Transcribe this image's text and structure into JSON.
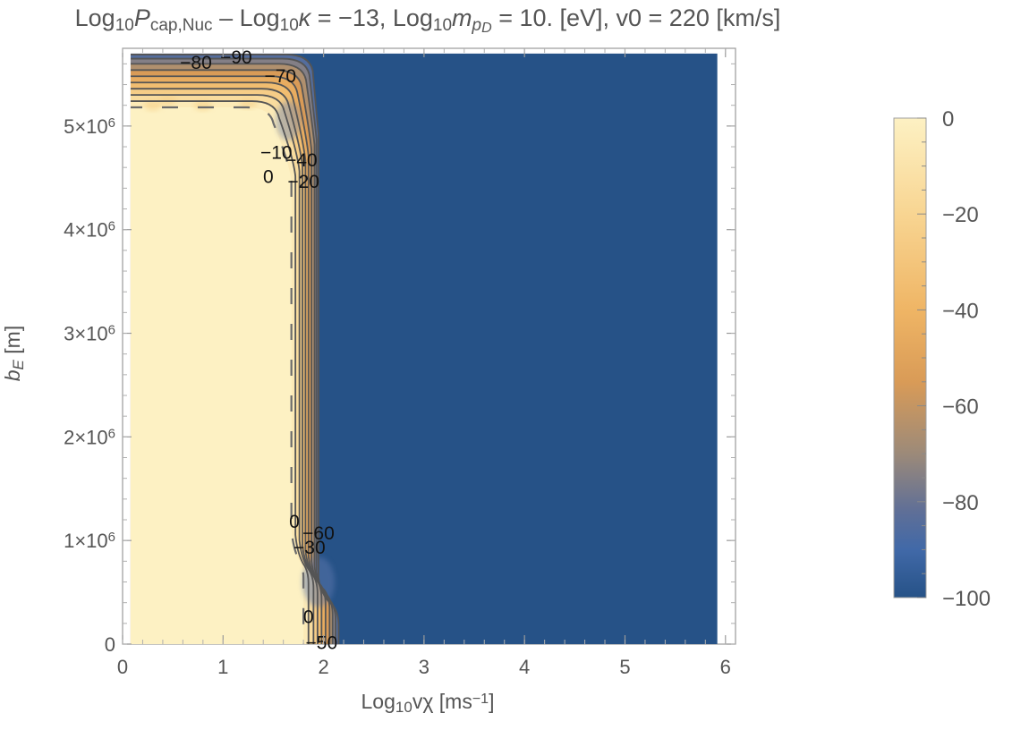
{
  "chart_data": {
    "type": "heatmap",
    "title": {
      "parts": [
        {
          "t": "Log"
        },
        {
          "t": "10",
          "sub": true
        },
        {
          "t": "P",
          "italic": true
        },
        {
          "t": "cap,Nuc",
          "sub": true
        },
        {
          "t": " – Log"
        },
        {
          "t": "10",
          "sub": true
        },
        {
          "t": "κ",
          "italic": true
        },
        {
          "t": " = −13, Log"
        },
        {
          "t": "10",
          "sub": true
        },
        {
          "t": "m",
          "italic": true
        },
        {
          "t": "p",
          "sub": true,
          "italic": true
        },
        {
          "t": "D",
          "subsub": true,
          "italic": true
        },
        {
          "t": " = 10. [eV], v0 = 220 [km/s]"
        }
      ]
    },
    "xlabel": {
      "parts": [
        {
          "t": "Log"
        },
        {
          "t": "10",
          "sub": true
        },
        {
          "t": "vχ [ms"
        },
        {
          "t": "−1",
          "sup": true
        },
        {
          "t": "]"
        }
      ]
    },
    "ylabel": {
      "parts": [
        {
          "t": "b",
          "italic": true
        },
        {
          "t": "E",
          "sub": true,
          "italic": true
        },
        {
          "t": " [m]"
        }
      ]
    },
    "xlim": [
      0,
      6.1
    ],
    "ylim": [
      0,
      5750000.0
    ],
    "x_ticks": [
      {
        "value": 0,
        "label": "0"
      },
      {
        "value": 1,
        "label": "1"
      },
      {
        "value": 2,
        "label": "2"
      },
      {
        "value": 3,
        "label": "3"
      },
      {
        "value": 4,
        "label": "4"
      },
      {
        "value": 5,
        "label": "5"
      },
      {
        "value": 6,
        "label": "6"
      }
    ],
    "y_ticks": [
      {
        "value": 0,
        "label": "0",
        "mantissa": "",
        "exponent": ""
      },
      {
        "value": 1000000,
        "label": "1×10^6",
        "mantissa": "1×10",
        "exponent": "6"
      },
      {
        "value": 2000000,
        "label": "2×10^6",
        "mantissa": "2×10",
        "exponent": "6"
      },
      {
        "value": 3000000,
        "label": "3×10^6",
        "mantissa": "3×10",
        "exponent": "6"
      },
      {
        "value": 4000000,
        "label": "4×10^6",
        "mantissa": "4×10",
        "exponent": "6"
      },
      {
        "value": 5000000,
        "label": "5×10^6",
        "mantissa": "5×10",
        "exponent": "6"
      }
    ],
    "data_extent": {
      "x": [
        0.08,
        5.92
      ],
      "y": [
        0,
        5700000.0
      ]
    },
    "regions": {
      "high_value": 0,
      "low_value": -100,
      "high_region_outline": [
        [
          0.08,
          0
        ],
        [
          1.78,
          0
        ],
        [
          1.8,
          900000.0
        ],
        [
          1.68,
          1050000.0
        ],
        [
          1.65,
          4500000.0
        ],
        [
          1.5,
          4800000.0
        ],
        [
          1.45,
          5150000.0
        ],
        [
          0.08,
          5150000.0
        ]
      ]
    },
    "contour_lines": {
      "levels": [
        0,
        -10,
        -20,
        -30,
        -40,
        -50,
        -60,
        -70,
        -80,
        -90
      ],
      "top_y": [
        5180000.0,
        5240000.0,
        5300000.0,
        5360000.0,
        5420000.0,
        5480000.0,
        5540000.0,
        5600000.0,
        5650000.0,
        5690000.0
      ],
      "mid_x": [
        1.68,
        1.72,
        1.76,
        1.79,
        1.82,
        1.85,
        1.88,
        1.91,
        1.93,
        1.95
      ],
      "bottom_x": [
        1.8,
        1.85,
        1.9,
        1.94,
        1.98,
        2.02,
        2.06,
        2.09,
        2.12,
        2.15
      ],
      "shoulder_y": [
        4550000.0,
        4600000.0,
        4650000.0,
        4700000.0,
        4750000.0
      ],
      "knee_y": [
        1000000.0,
        950000.0,
        900000.0,
        850000.0,
        800000.0
      ]
    },
    "contour_labels": [
      {
        "text": "−80",
        "x": 0.73,
        "y": 5600000.0
      },
      {
        "text": "−90",
        "x": 1.13,
        "y": 5650000.0
      },
      {
        "text": "−70",
        "x": 1.57,
        "y": 5470000.0
      },
      {
        "text": "−10",
        "x": 1.53,
        "y": 4730000.0
      },
      {
        "text": "−40",
        "x": 1.78,
        "y": 4660000.0
      },
      {
        "text": "0",
        "x": 1.45,
        "y": 4500000.0
      },
      {
        "text": "−20",
        "x": 1.8,
        "y": 4450000.0
      },
      {
        "text": "0",
        "x": 1.71,
        "y": 1170000.0
      },
      {
        "text": "−60",
        "x": 1.95,
        "y": 1060000.0
      },
      {
        "text": "−30",
        "x": 1.86,
        "y": 920000.0
      },
      {
        "text": "0",
        "x": 1.85,
        "y": 250000.0
      },
      {
        "text": "−50",
        "x": 1.98,
        "y": 0.0
      }
    ],
    "legend": {
      "placement": "right",
      "range": [
        -100,
        0
      ],
      "ticks": [
        {
          "value": 0,
          "label": "0"
        },
        {
          "value": -20,
          "label": "−20"
        },
        {
          "value": -40,
          "label": "−40"
        },
        {
          "value": -60,
          "label": "−60"
        },
        {
          "value": -80,
          "label": "−80"
        },
        {
          "value": -100,
          "label": "−100"
        }
      ],
      "colors": [
        {
          "value": 0,
          "color": "#fdf1c3"
        },
        {
          "value": -20,
          "color": "#f8d592"
        },
        {
          "value": -40,
          "color": "#efb565"
        },
        {
          "value": -55,
          "color": "#d99b57"
        },
        {
          "value": -70,
          "color": "#9c8a79"
        },
        {
          "value": -82,
          "color": "#5f6f97"
        },
        {
          "value": -90,
          "color": "#4169a8"
        },
        {
          "value": -100,
          "color": "#265287"
        }
      ]
    }
  }
}
